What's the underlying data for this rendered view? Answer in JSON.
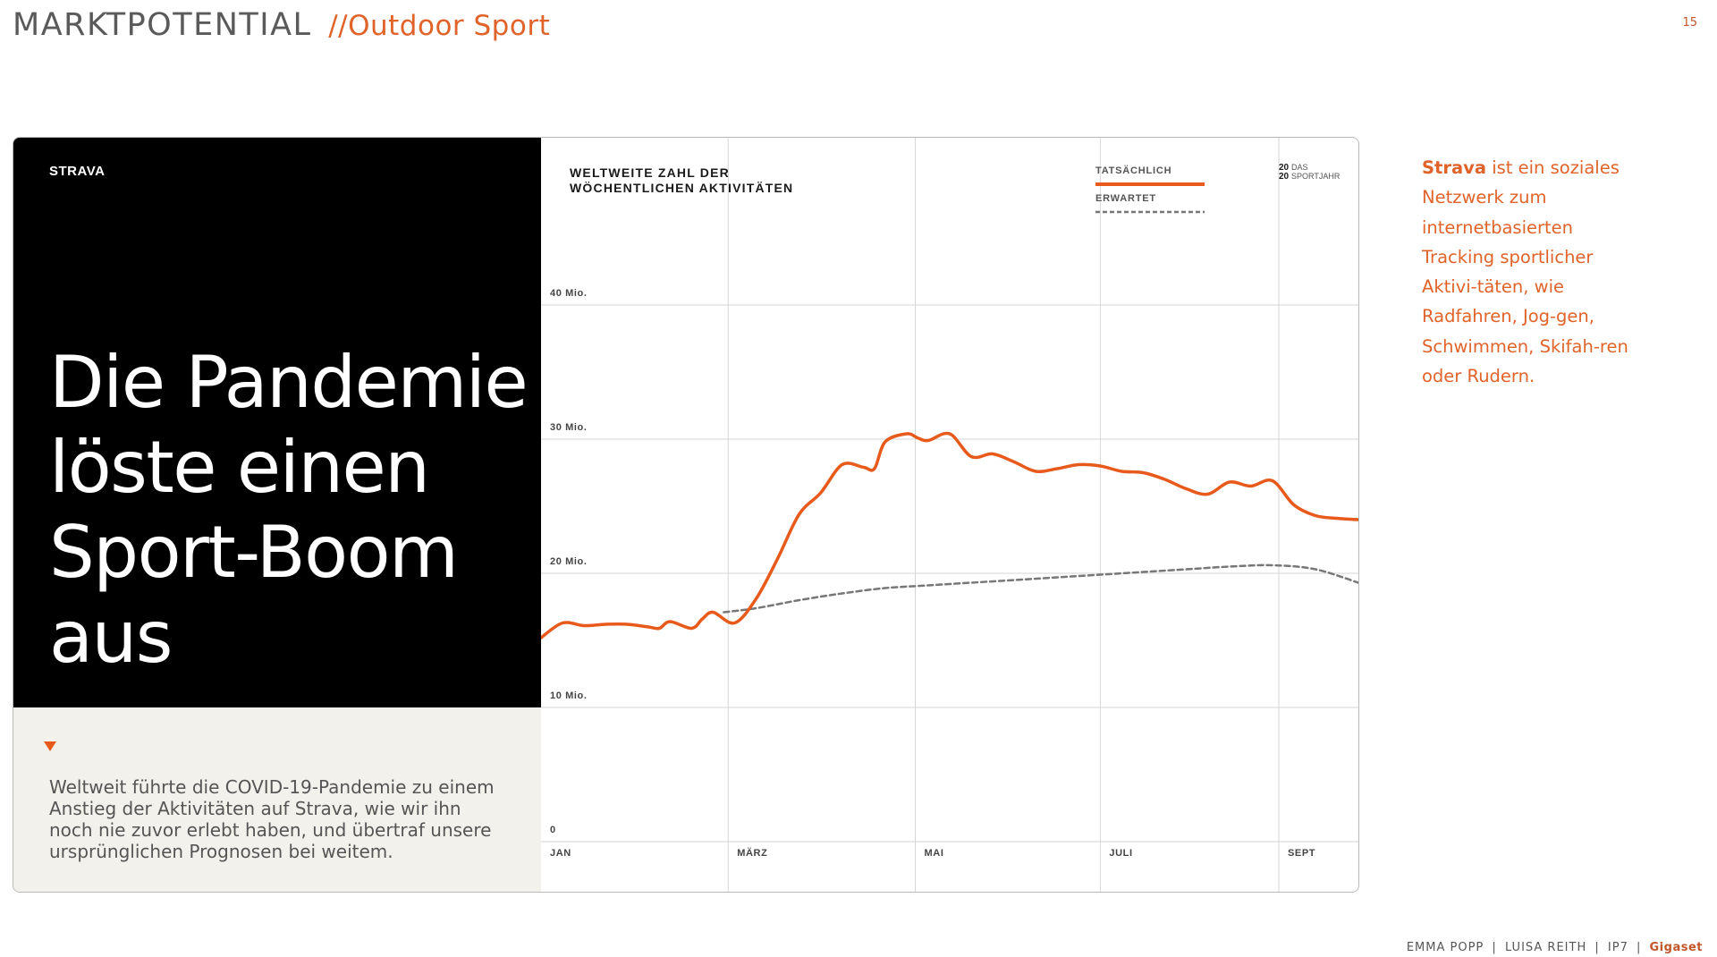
{
  "slide": {
    "title": "MARKTPOTENTIAL",
    "subtitle": "//Outdoor Sport",
    "page_number": "15"
  },
  "card": {
    "brand": "STRAVA",
    "headline_lines": [
      "Die Pandemie",
      "löste einen",
      "Sport-Boom",
      "aus"
    ],
    "description_lines": [
      "Weltweit führte die COVID-19-Pandemie zu einem",
      "Anstieg der Aktivitäten auf Strava, wie wir ihn",
      "noch nie zuvor erlebt haben, und übertraf unsere",
      "ursprünglichen Prognosen bei weitem."
    ]
  },
  "chart_data": {
    "type": "line",
    "title_lines": [
      "WELTWEITE ZAHL DER",
      "WÖCHENTLICHEN AKTIVITÄTEN"
    ],
    "corner_label": {
      "top": "DAS",
      "bottom": "SPORTJAHR",
      "year_top": "20",
      "year_bottom": "20"
    },
    "y_ticks": [
      "0",
      "10 Mio.",
      "20 Mio.",
      "30 Mio.",
      "40 Mio."
    ],
    "y_tick_values": [
      0,
      10,
      20,
      30,
      40
    ],
    "ylim": [
      0,
      40
    ],
    "x_ticks": [
      "JAN",
      "MÄRZ",
      "MAI",
      "JULI",
      "SEPT"
    ],
    "x_tick_weeks": [
      0,
      8.7,
      17.4,
      26,
      34.3
    ],
    "xlim": [
      0,
      38
    ],
    "grid": true,
    "legend_position": "top-right",
    "colors": {
      "actual": "#e85a1c",
      "expected": "#777777"
    },
    "series": [
      {
        "name": "TATSÄCHLICH",
        "style": "solid",
        "x": [
          0,
          1,
          2,
          3,
          4,
          5,
          5.5,
          6,
          7,
          7.5,
          8,
          9,
          10,
          11,
          12,
          13,
          14,
          15,
          15.5,
          16,
          17,
          17.5,
          18,
          19,
          20,
          21,
          22,
          23,
          24,
          25,
          26,
          27,
          28,
          29,
          30,
          31,
          32,
          33,
          34,
          35,
          36,
          37,
          38
        ],
        "y": [
          15.2,
          16.3,
          16.1,
          16.2,
          16.2,
          16.0,
          15.9,
          16.4,
          15.9,
          16.6,
          17.1,
          16.3,
          18.1,
          21.1,
          24.4,
          26.0,
          28.1,
          27.9,
          27.8,
          29.8,
          30.4,
          30.1,
          29.9,
          30.4,
          28.7,
          28.9,
          28.3,
          27.6,
          27.8,
          28.1,
          28.0,
          27.6,
          27.5,
          27.0,
          26.3,
          25.9,
          26.8,
          26.5,
          26.9,
          25.1,
          24.3,
          24.1,
          24.0
        ]
      },
      {
        "name": "ERWARTET",
        "style": "dashed",
        "x": [
          8.5,
          10,
          12,
          14,
          16,
          18,
          20,
          22,
          24,
          26,
          28,
          30,
          32,
          34,
          36,
          38
        ],
        "y": [
          17.1,
          17.4,
          18.0,
          18.5,
          18.9,
          19.1,
          19.3,
          19.5,
          19.7,
          19.9,
          20.1,
          20.3,
          20.5,
          20.6,
          20.3,
          19.3
        ]
      }
    ]
  },
  "side_note": {
    "lines": [
      {
        "bold": "Strava",
        "text": " ist ein soziales"
      },
      {
        "bold": "",
        "text": "Netzwerk zum"
      },
      {
        "bold": "",
        "text": "internetbasierten"
      },
      {
        "bold": "",
        "text": "Tracking  sportlicher"
      },
      {
        "bold": "",
        "text": "Aktivi-täten, wie"
      },
      {
        "bold": "",
        "text": "Radfahren, Jog-gen,"
      },
      {
        "bold": "",
        "text": "Schwimmen,  Skifah-ren"
      },
      {
        "bold": "",
        "text": "oder Rudern."
      }
    ]
  },
  "footer": {
    "authors": [
      "EMMA POPP",
      "LUISA REITH",
      "IP7"
    ],
    "brand": "Gigaset",
    "separator": "|"
  }
}
